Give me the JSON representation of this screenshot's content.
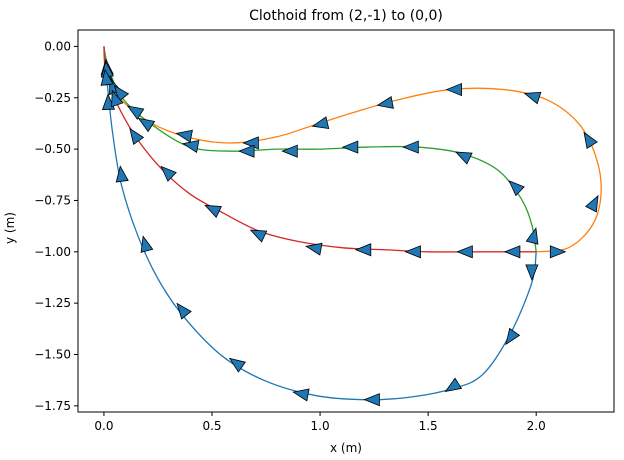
{
  "chart_data": {
    "type": "line",
    "title": "Clothoid from (2,-1) to (0,0)",
    "xlabel": "x (m)",
    "ylabel": "y (m)",
    "xlim": [
      -0.12,
      2.36
    ],
    "ylim": [
      -1.78,
      0.08
    ],
    "x_ticks": [
      0.0,
      0.5,
      1.0,
      1.5,
      2.0
    ],
    "x_tick_labels": [
      "0.0",
      "0.5",
      "1.0",
      "1.5",
      "2.0"
    ],
    "y_ticks": [
      0.0,
      -0.25,
      -0.5,
      -0.75,
      -1.0,
      -1.25,
      -1.5,
      -1.75
    ],
    "y_tick_labels": [
      "0.00",
      "−0.25",
      "−0.50",
      "−0.75",
      "−1.00",
      "−1.25",
      "−1.50",
      "−1.75"
    ],
    "grid": false,
    "legend": false,
    "arrow_color": "#1f77b4",
    "series": [
      {
        "color": "#1f77b4",
        "points": [
          [
            2.0,
            -1.0
          ],
          [
            1.98,
            -1.15
          ],
          [
            1.88,
            -1.4
          ],
          [
            1.75,
            -1.6
          ],
          [
            1.6,
            -1.67
          ],
          [
            1.4,
            -1.71
          ],
          [
            1.2,
            -1.72
          ],
          [
            0.98,
            -1.7
          ],
          [
            0.75,
            -1.63
          ],
          [
            0.55,
            -1.51
          ],
          [
            0.38,
            -1.33
          ],
          [
            0.26,
            -1.15
          ],
          [
            0.16,
            -0.93
          ],
          [
            0.08,
            -0.67
          ],
          [
            0.04,
            -0.42
          ],
          [
            0.02,
            -0.23
          ],
          [
            0.01,
            -0.12
          ],
          [
            0.0,
            0.0
          ]
        ],
        "arrows": [
          [
            1.98,
            -1.1,
            1.98,
            -1.19
          ],
          [
            1.88,
            -1.42,
            1.86,
            -1.45
          ],
          [
            1.61,
            -1.66,
            1.58,
            -1.68
          ],
          [
            1.24,
            -1.72,
            1.19,
            -1.72
          ],
          [
            0.91,
            -1.69,
            0.86,
            -1.68
          ],
          [
            0.61,
            -1.54,
            0.57,
            -1.51
          ],
          [
            0.36,
            -1.28,
            0.33,
            -1.24
          ],
          [
            0.19,
            -0.96,
            0.18,
            -0.92
          ],
          [
            0.08,
            -0.62,
            0.075,
            -0.58
          ],
          [
            0.02,
            -0.27,
            0.018,
            -0.2
          ],
          [
            0.018,
            -0.15,
            0.016,
            -0.1
          ]
        ]
      },
      {
        "color": "#ff7f0e",
        "points": [
          [
            2.0,
            -1.0
          ],
          [
            2.15,
            -0.98
          ],
          [
            2.26,
            -0.87
          ],
          [
            2.3,
            -0.72
          ],
          [
            2.28,
            -0.55
          ],
          [
            2.2,
            -0.38
          ],
          [
            2.05,
            -0.26
          ],
          [
            1.85,
            -0.21
          ],
          [
            1.6,
            -0.21
          ],
          [
            1.36,
            -0.26
          ],
          [
            1.16,
            -0.32
          ],
          [
            0.98,
            -0.38
          ],
          [
            0.8,
            -0.44
          ],
          [
            0.6,
            -0.47
          ],
          [
            0.42,
            -0.45
          ],
          [
            0.25,
            -0.39
          ],
          [
            0.12,
            -0.3
          ],
          [
            0.04,
            -0.2
          ],
          [
            0.01,
            -0.08
          ],
          [
            0.0,
            0.0
          ]
        ],
        "arrows": [
          [
            2.27,
            -0.76,
            2.3,
            -0.7
          ],
          [
            2.24,
            -0.45,
            2.21,
            -0.4
          ],
          [
            1.98,
            -0.24,
            1.95,
            -0.23
          ],
          [
            1.62,
            -0.21,
            1.57,
            -0.21
          ],
          [
            1.3,
            -0.28,
            1.25,
            -0.29
          ],
          [
            1.0,
            -0.38,
            0.96,
            -0.39
          ],
          [
            0.68,
            -0.47,
            0.62,
            -0.47
          ],
          [
            0.37,
            -0.43,
            0.32,
            -0.42
          ],
          [
            0.14,
            -0.31,
            0.11,
            -0.29
          ],
          [
            0.04,
            -0.19,
            0.03,
            -0.16
          ],
          [
            0.012,
            -0.1,
            0.008,
            -0.05
          ]
        ]
      },
      {
        "color": "#2ca02c",
        "points": [
          [
            2.0,
            -1.0
          ],
          [
            1.98,
            -0.87
          ],
          [
            1.93,
            -0.74
          ],
          [
            1.82,
            -0.6
          ],
          [
            1.65,
            -0.52
          ],
          [
            1.45,
            -0.49
          ],
          [
            1.22,
            -0.49
          ],
          [
            1.0,
            -0.5
          ],
          [
            0.8,
            -0.5
          ],
          [
            0.6,
            -0.51
          ],
          [
            0.4,
            -0.49
          ],
          [
            0.22,
            -0.38
          ],
          [
            0.1,
            -0.27
          ],
          [
            0.04,
            -0.16
          ],
          [
            0.01,
            -0.06
          ],
          [
            0.0,
            0.0
          ]
        ],
        "arrows": [
          [
            1.99,
            -0.92,
            2.0,
            -0.88
          ],
          [
            1.9,
            -0.68,
            1.87,
            -0.65
          ],
          [
            1.66,
            -0.53,
            1.62,
            -0.51
          ],
          [
            1.42,
            -0.49,
            1.37,
            -0.49
          ],
          [
            1.14,
            -0.49,
            1.09,
            -0.49
          ],
          [
            0.86,
            -0.51,
            0.81,
            -0.51
          ],
          [
            0.66,
            -0.51,
            0.61,
            -0.51
          ],
          [
            0.4,
            -0.48,
            0.35,
            -0.47
          ],
          [
            0.19,
            -0.37,
            0.16,
            -0.35
          ],
          [
            0.07,
            -0.22,
            0.055,
            -0.2
          ],
          [
            0.012,
            -0.11,
            0.008,
            -0.07
          ]
        ]
      },
      {
        "color": "#d62728",
        "points": [
          [
            2.0,
            -1.0
          ],
          [
            1.75,
            -1.0
          ],
          [
            1.5,
            -1.0
          ],
          [
            1.3,
            -0.99
          ],
          [
            1.1,
            -0.98
          ],
          [
            0.9,
            -0.95
          ],
          [
            0.72,
            -0.9
          ],
          [
            0.55,
            -0.81
          ],
          [
            0.4,
            -0.72
          ],
          [
            0.27,
            -0.6
          ],
          [
            0.16,
            -0.46
          ],
          [
            0.08,
            -0.32
          ],
          [
            0.03,
            -0.2
          ],
          [
            0.005,
            -0.1
          ],
          [
            0.0,
            0.0
          ]
        ],
        "arrows": [
          [
            2.1,
            -1.0,
            2.15,
            -1.0
          ],
          [
            1.89,
            -1.0,
            1.84,
            -1.0
          ],
          [
            1.67,
            -1.0,
            1.62,
            -1.0
          ],
          [
            1.43,
            -1.0,
            1.38,
            -1.0
          ],
          [
            1.2,
            -0.99,
            1.15,
            -0.99
          ],
          [
            0.97,
            -0.98,
            0.92,
            -0.97
          ],
          [
            0.71,
            -0.91,
            0.67,
            -0.89
          ],
          [
            0.5,
            -0.79,
            0.46,
            -0.77
          ],
          [
            0.29,
            -0.61,
            0.26,
            -0.58
          ],
          [
            0.14,
            -0.43,
            0.12,
            -0.4
          ],
          [
            0.05,
            -0.25,
            0.04,
            -0.22
          ],
          [
            0.01,
            -0.15,
            0.005,
            -0.11
          ]
        ]
      }
    ]
  }
}
